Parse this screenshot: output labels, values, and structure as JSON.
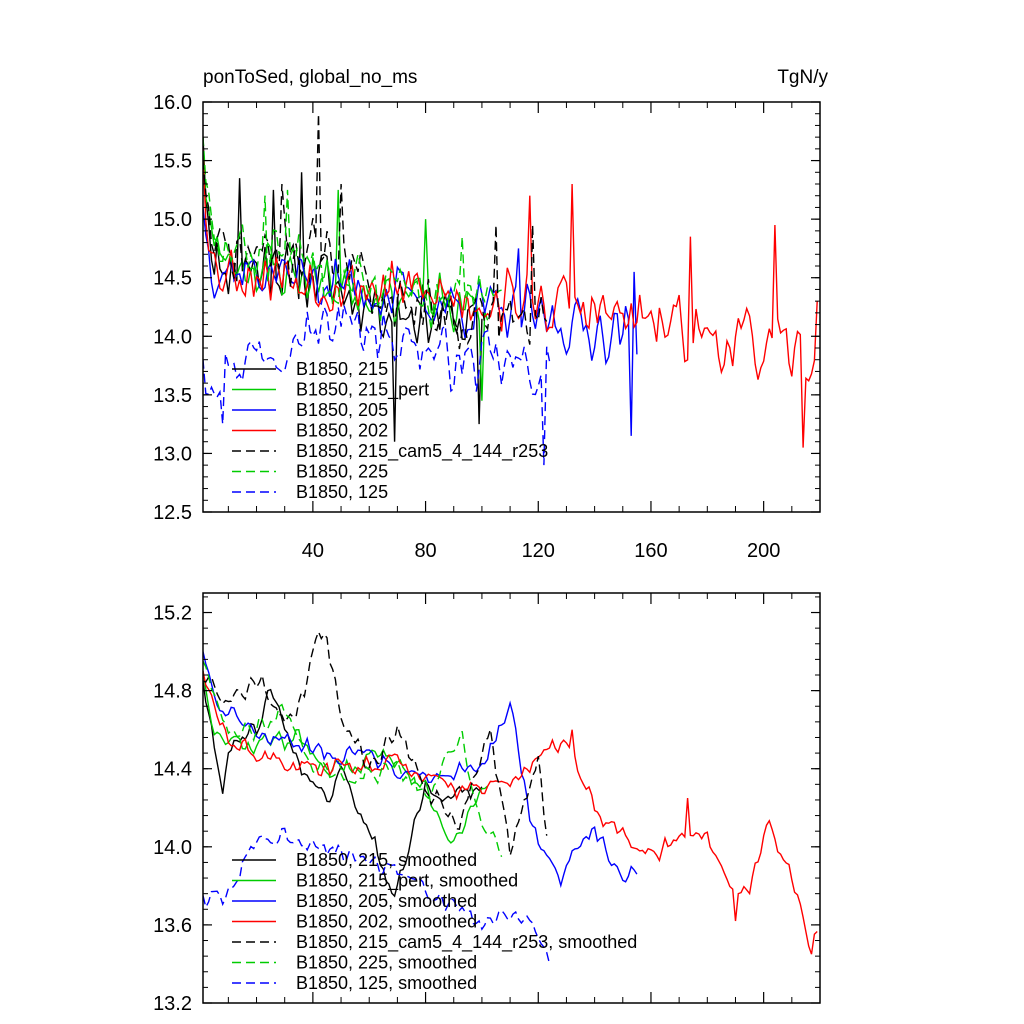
{
  "chart_data": [
    {
      "type": "line",
      "title": "ponToSed, global_no_ms",
      "units": "TgN/y",
      "xlabel": "",
      "ylabel": "",
      "xlim": [
        1,
        220
      ],
      "ylim": [
        12.5,
        16.0
      ],
      "xticks": [
        40,
        80,
        120,
        160,
        200
      ],
      "yticks": [
        12.5,
        13.0,
        13.5,
        14.0,
        14.5,
        15.0,
        15.5,
        16.0
      ],
      "ytick_labels": [
        "12.5",
        "13.0",
        "13.5",
        "14.0",
        "14.5",
        "15.0",
        "15.5",
        "16.0"
      ],
      "legend_position": "lower-left",
      "series": [
        {
          "name": "B1850, 215",
          "color": "#000000",
          "dash": false,
          "n": 100,
          "start": 15.7,
          "seed": 11,
          "base": [
            [
              1,
              15.6
            ],
            [
              5,
              14.6
            ],
            [
              20,
              14.6
            ],
            [
              40,
              14.5
            ],
            [
              60,
              14.3
            ],
            [
              80,
              14.2
            ],
            [
              100,
              14.1
            ]
          ],
          "amp": 0.35,
          "spikes": [
            [
              14,
              15.35
            ],
            [
              26,
              15.25
            ],
            [
              36,
              15.4
            ],
            [
              69,
              13.1
            ],
            [
              99,
              13.25
            ]
          ]
        },
        {
          "name": "B1850, 215_pert",
          "color": "#00cc00",
          "dash": false,
          "n": 102,
          "start": 15.6,
          "seed": 23,
          "base": [
            [
              1,
              15.5
            ],
            [
              5,
              14.7
            ],
            [
              20,
              14.6
            ],
            [
              40,
              14.5
            ],
            [
              60,
              14.4
            ],
            [
              80,
              14.3
            ],
            [
              102,
              14.2
            ]
          ],
          "amp": 0.3,
          "spikes": [
            [
              49,
              15.25
            ],
            [
              80,
              15.0
            ],
            [
              100,
              13.45
            ]
          ]
        },
        {
          "name": "B1850, 205",
          "color": "#0000ff",
          "dash": false,
          "n": 155,
          "start": 15.1,
          "seed": 37,
          "base": [
            [
              1,
              15.0
            ],
            [
              5,
              14.6
            ],
            [
              40,
              14.5
            ],
            [
              80,
              14.3
            ],
            [
              120,
              14.15
            ],
            [
              155,
              14.0
            ]
          ],
          "amp": 0.3,
          "spikes": [
            [
              113,
              14.75
            ],
            [
              153,
              13.15
            ],
            [
              154,
              14.55
            ]
          ]
        },
        {
          "name": "B1850, 202",
          "color": "#ff0000",
          "dash": false,
          "n": 219,
          "start": 15.6,
          "seed": 53,
          "base": [
            [
              1,
              15.4
            ],
            [
              5,
              14.6
            ],
            [
              40,
              14.5
            ],
            [
              80,
              14.35
            ],
            [
              120,
              14.3
            ],
            [
              160,
              14.1
            ],
            [
              200,
              13.9
            ],
            [
              219,
              13.8
            ]
          ],
          "amp": 0.33,
          "spikes": [
            [
              117,
              15.2
            ],
            [
              132,
              15.3
            ],
            [
              174,
              14.85
            ],
            [
              204,
              14.95
            ],
            [
              214,
              13.05
            ],
            [
              219,
              14.3
            ]
          ]
        },
        {
          "name": "B1850, 215_cam5_4_144_r253",
          "color": "#000000",
          "dash": true,
          "n": 123,
          "start": 15.5,
          "seed": 71,
          "base": [
            [
              1,
              15.4
            ],
            [
              5,
              14.7
            ],
            [
              30,
              14.7
            ],
            [
              45,
              14.8
            ],
            [
              60,
              14.4
            ],
            [
              90,
              14.2
            ],
            [
              123,
              14.1
            ]
          ],
          "amp": 0.33,
          "spikes": [
            [
              42,
              15.9
            ],
            [
              29,
              15.3
            ],
            [
              50,
              15.3
            ],
            [
              105,
              14.95
            ],
            [
              118,
              14.95
            ]
          ]
        },
        {
          "name": "B1850, 225",
          "color": "#00cc00",
          "dash": true,
          "n": 107,
          "start": 15.7,
          "seed": 83,
          "base": [
            [
              1,
              15.5
            ],
            [
              5,
              14.7
            ],
            [
              30,
              14.7
            ],
            [
              60,
              14.5
            ],
            [
              80,
              14.3
            ],
            [
              107,
              14.3
            ]
          ],
          "amp": 0.3,
          "spikes": [
            [
              31,
              15.25
            ],
            [
              23,
              15.2
            ],
            [
              93,
              14.85
            ]
          ]
        },
        {
          "name": "B1850, 125",
          "color": "#0000ff",
          "dash": true,
          "n": 124,
          "start": 13.8,
          "seed": 97,
          "base": [
            [
              1,
              13.7
            ],
            [
              10,
              13.75
            ],
            [
              30,
              14.0
            ],
            [
              60,
              14.1
            ],
            [
              90,
              13.8
            ],
            [
              124,
              13.7
            ]
          ],
          "amp": 0.3,
          "spikes": [
            [
              8,
              13.25
            ],
            [
              122,
              12.9
            ],
            [
              49,
              14.25
            ]
          ]
        }
      ]
    },
    {
      "type": "line",
      "title": "",
      "xlabel": "",
      "ylabel": "",
      "xlim": [
        1,
        220
      ],
      "ylim": [
        13.2,
        15.3
      ],
      "xticks": [
        40,
        80,
        120,
        160,
        200
      ],
      "yticks": [
        13.2,
        13.6,
        14.0,
        14.4,
        14.8,
        15.2
      ],
      "ytick_labels": [
        "13.2",
        "13.6",
        "14.0",
        "14.4",
        "14.8",
        "15.2"
      ],
      "legend_position": "lower-left",
      "series": [
        {
          "name": "B1850, 215, smoothed",
          "color": "#000000",
          "dash": false,
          "n": 100,
          "start": 14.85,
          "seed": 111,
          "base": [
            [
              1,
              14.85
            ],
            [
              5,
              14.5
            ],
            [
              8,
              14.3
            ],
            [
              12,
              14.55
            ],
            [
              20,
              14.6
            ],
            [
              25,
              14.85
            ],
            [
              30,
              14.6
            ],
            [
              40,
              14.3
            ],
            [
              45,
              14.25
            ],
            [
              50,
              14.4
            ],
            [
              55,
              14.25
            ],
            [
              62,
              14.0
            ],
            [
              68,
              13.75
            ],
            [
              72,
              13.9
            ],
            [
              80,
              14.3
            ],
            [
              90,
              14.25
            ],
            [
              100,
              14.3
            ]
          ],
          "amp": 0.06,
          "spikes": []
        },
        {
          "name": "B1850, 215_pert, smoothed",
          "color": "#00cc00",
          "dash": false,
          "n": 102,
          "start": 14.9,
          "seed": 123,
          "base": [
            [
              1,
              14.9
            ],
            [
              5,
              14.6
            ],
            [
              15,
              14.5
            ],
            [
              25,
              14.55
            ],
            [
              35,
              14.55
            ],
            [
              45,
              14.4
            ],
            [
              55,
              14.4
            ],
            [
              65,
              14.5
            ],
            [
              80,
              14.3
            ],
            [
              85,
              14.1
            ],
            [
              90,
              14.0
            ],
            [
              100,
              14.3
            ],
            [
              102,
              14.3
            ]
          ],
          "amp": 0.06,
          "spikes": []
        },
        {
          "name": "B1850, 205, smoothed",
          "color": "#0000ff",
          "dash": false,
          "n": 155,
          "start": 15.0,
          "seed": 137,
          "base": [
            [
              1,
              15.0
            ],
            [
              5,
              14.75
            ],
            [
              20,
              14.6
            ],
            [
              40,
              14.5
            ],
            [
              60,
              14.45
            ],
            [
              80,
              14.35
            ],
            [
              100,
              14.4
            ],
            [
              106,
              14.6
            ],
            [
              110,
              14.7
            ],
            [
              118,
              14.1
            ],
            [
              128,
              13.85
            ],
            [
              140,
              14.1
            ],
            [
              150,
              13.85
            ],
            [
              155,
              13.9
            ]
          ],
          "amp": 0.06,
          "spikes": []
        },
        {
          "name": "B1850, 202, smoothed",
          "color": "#ff0000",
          "dash": false,
          "n": 219,
          "start": 14.9,
          "seed": 153,
          "base": [
            [
              1,
              14.9
            ],
            [
              10,
              14.55
            ],
            [
              30,
              14.4
            ],
            [
              50,
              14.4
            ],
            [
              70,
              14.45
            ],
            [
              90,
              14.3
            ],
            [
              100,
              14.3
            ],
            [
              110,
              14.35
            ],
            [
              120,
              14.45
            ],
            [
              130,
              14.55
            ],
            [
              140,
              14.2
            ],
            [
              150,
              14.05
            ],
            [
              160,
              13.95
            ],
            [
              170,
              14.05
            ],
            [
              180,
              14.05
            ],
            [
              190,
              13.7
            ],
            [
              195,
              13.8
            ],
            [
              202,
              14.1
            ],
            [
              210,
              13.85
            ],
            [
              216,
              13.5
            ],
            [
              219,
              13.55
            ]
          ],
          "amp": 0.06,
          "spikes": [
            [
              132,
              14.6
            ],
            [
              173,
              14.25
            ],
            [
              190,
              13.62
            ],
            [
              217,
              13.45
            ]
          ]
        },
        {
          "name": "B1850, 215_cam5_4_144_r253, smoothed",
          "color": "#000000",
          "dash": true,
          "n": 123,
          "start": 14.85,
          "seed": 171,
          "base": [
            [
              1,
              14.85
            ],
            [
              10,
              14.75
            ],
            [
              22,
              14.85
            ],
            [
              30,
              14.6
            ],
            [
              37,
              14.8
            ],
            [
              42,
              15.12
            ],
            [
              45,
              15.05
            ],
            [
              50,
              14.7
            ],
            [
              60,
              14.4
            ],
            [
              70,
              14.6
            ],
            [
              80,
              14.3
            ],
            [
              92,
              14.1
            ],
            [
              100,
              14.45
            ],
            [
              103,
              14.6
            ],
            [
              110,
              14.0
            ],
            [
              117,
              14.3
            ],
            [
              120,
              14.45
            ],
            [
              123,
              14.05
            ]
          ],
          "amp": 0.06,
          "spikes": []
        },
        {
          "name": "B1850, 225, smoothed",
          "color": "#00cc00",
          "dash": true,
          "n": 107,
          "start": 14.95,
          "seed": 183,
          "base": [
            [
              1,
              14.95
            ],
            [
              10,
              14.6
            ],
            [
              20,
              14.6
            ],
            [
              30,
              14.7
            ],
            [
              40,
              14.4
            ],
            [
              55,
              14.35
            ],
            [
              70,
              14.4
            ],
            [
              82,
              14.25
            ],
            [
              88,
              14.5
            ],
            [
              93,
              14.55
            ],
            [
              100,
              14.1
            ],
            [
              107,
              14.0
            ]
          ],
          "amp": 0.06,
          "spikes": []
        },
        {
          "name": "B1850, 125, smoothed",
          "color": "#0000ff",
          "dash": true,
          "n": 124,
          "start": 13.75,
          "seed": 197,
          "base": [
            [
              1,
              13.72
            ],
            [
              10,
              13.75
            ],
            [
              20,
              14.05
            ],
            [
              30,
              14.05
            ],
            [
              42,
              14.0
            ],
            [
              55,
              13.95
            ],
            [
              65,
              13.9
            ],
            [
              80,
              13.8
            ],
            [
              90,
              13.7
            ],
            [
              100,
              13.6
            ],
            [
              112,
              13.7
            ],
            [
              120,
              13.55
            ],
            [
              124,
              13.45
            ]
          ],
          "amp": 0.06,
          "spikes": []
        }
      ]
    }
  ]
}
